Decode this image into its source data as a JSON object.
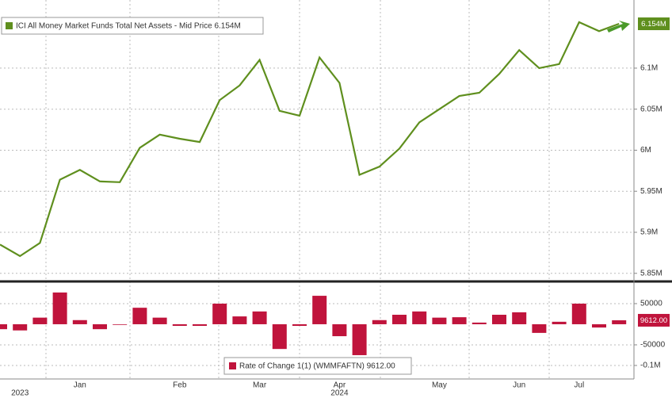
{
  "chart_data": [
    {
      "type": "line",
      "series": [
        {
          "name": "ICI All Money Market Funds Total Net Assets - Mid Price 6.154M",
          "color": "#5f8f1e",
          "values": [
            5.885,
            5.871,
            5.887,
            5.964,
            5.976,
            5.962,
            5.961,
            6.003,
            6.019,
            6.014,
            6.01,
            6.061,
            6.079,
            6.11,
            6.048,
            6.042,
            6.113,
            6.082,
            5.97,
            5.98,
            6.002,
            6.034,
            6.05,
            6.066,
            6.07,
            6.093,
            6.122,
            6.1,
            6.105,
            6.156,
            6.145,
            6.154
          ],
          "value_labels": [
            null,
            null,
            null,
            null,
            null,
            null,
            null,
            null,
            null,
            null,
            null,
            null,
            null,
            null,
            null,
            null,
            null,
            null,
            null,
            null,
            null,
            null,
            null,
            null,
            null,
            null,
            null,
            null,
            null,
            null,
            null,
            "6.154M"
          ]
        }
      ],
      "ylim": [
        5.843,
        6.183
      ],
      "yticks": [
        {
          "value": 5.85,
          "label": "5.85M"
        },
        {
          "value": 5.9,
          "label": "5.9M"
        },
        {
          "value": 5.95,
          "label": "5.95M"
        },
        {
          "value": 6,
          "label": "6M"
        },
        {
          "value": 6.05,
          "label": "6.05M"
        },
        {
          "value": 6.1,
          "label": "6.1M"
        }
      ],
      "grid": true
    },
    {
      "type": "bar",
      "categories": [
        null,
        null,
        null,
        null,
        "Jan",
        null,
        null,
        null,
        null,
        "Feb",
        null,
        null,
        null,
        "Mar",
        null,
        null,
        null,
        "Apr",
        null,
        null,
        null,
        null,
        "May",
        null,
        null,
        null,
        "Jun",
        null,
        null,
        "Jul",
        null,
        null
      ],
      "year_labels": [
        null,
        "2023",
        null,
        null,
        null,
        null,
        null,
        null,
        null,
        null,
        null,
        null,
        null,
        null,
        null,
        null,
        null,
        "2024",
        null,
        null,
        null,
        null,
        null,
        null,
        null,
        null,
        null,
        null,
        null,
        null,
        null,
        null
      ],
      "series": [
        {
          "name": "Rate of Change 1(1) (WMMFAFTN) 9612.00",
          "color": "#c0143c",
          "values": [
            -12000,
            -15000,
            16000,
            77000,
            10000,
            -12000,
            -1000,
            40000,
            16000,
            -4000,
            -4000,
            50000,
            19000,
            31000,
            -60000,
            -4000,
            69000,
            -29000,
            -75000,
            10000,
            23000,
            31000,
            16000,
            17000,
            4000,
            23000,
            29000,
            -21000,
            6000,
            50000,
            -8000,
            9612
          ],
          "value_labels": [
            null,
            null,
            null,
            null,
            null,
            null,
            null,
            null,
            null,
            null,
            null,
            null,
            null,
            null,
            null,
            null,
            null,
            null,
            null,
            null,
            null,
            null,
            null,
            null,
            null,
            null,
            null,
            null,
            null,
            null,
            null,
            "9612.00"
          ]
        }
      ],
      "ylim": [
        -127000,
        98000
      ],
      "yticks": [
        {
          "value": -100000,
          "label": "-0.1M"
        },
        -50000,
        50000
      ],
      "grid": true
    }
  ]
}
